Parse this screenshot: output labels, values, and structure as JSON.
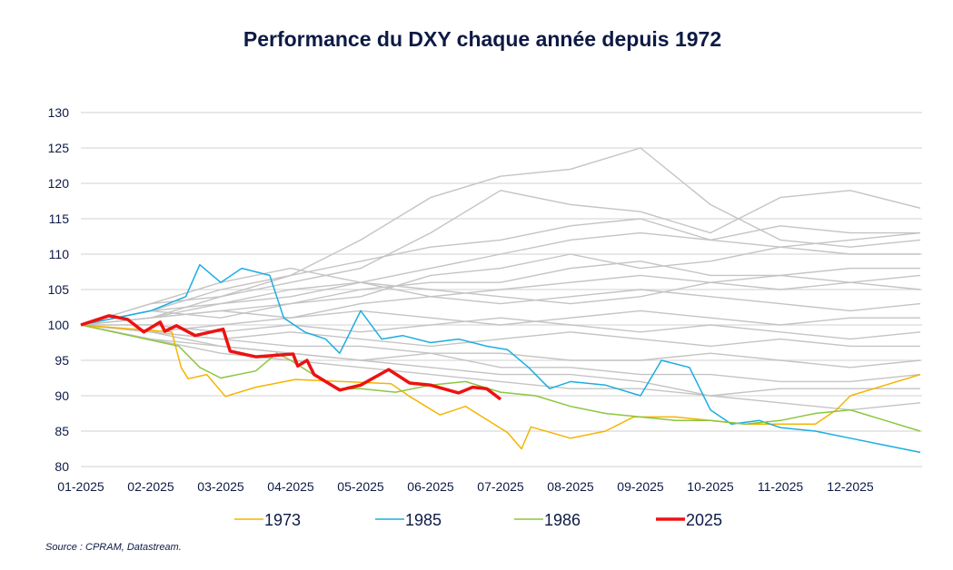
{
  "chart_data": {
    "type": "line",
    "title": "Performance du DXY chaque année depuis 1972",
    "xlabel": "",
    "ylabel": "",
    "ylim": [
      80,
      130
    ],
    "yticks": [
      80,
      85,
      90,
      95,
      100,
      105,
      110,
      115,
      120,
      125,
      130
    ],
    "xlim": [
      "2025-01-01",
      "2025-12-31"
    ],
    "xtick_labels": [
      "01-2025",
      "02-2025",
      "03-2025",
      "04-2025",
      "05-2025",
      "06-2025",
      "07-2025",
      "08-2025",
      "09-2025",
      "10-2025",
      "11-2025",
      "12-2025"
    ],
    "grid": "horizontal",
    "legend_position": "bottom",
    "source": "Source : CPRAM, Datastream.",
    "series": [
      {
        "name": "1973",
        "color": "#f5b400",
        "width": 1.5,
        "points": [
          [
            "2025-01-01",
            100
          ],
          [
            "2025-01-20",
            99.5
          ],
          [
            "2025-02-10",
            99
          ],
          [
            "2025-02-14",
            94
          ],
          [
            "2025-02-17",
            92.4
          ],
          [
            "2025-02-25",
            93
          ],
          [
            "2025-03-03",
            89.9
          ],
          [
            "2025-03-16",
            91.2
          ],
          [
            "2025-04-03",
            92.3
          ],
          [
            "2025-05-14",
            91.7
          ],
          [
            "2025-05-22",
            89.9
          ],
          [
            "2025-06-05",
            87.3
          ],
          [
            "2025-06-16",
            88.5
          ],
          [
            "2025-07-04",
            84.8
          ],
          [
            "2025-07-10",
            82.5
          ],
          [
            "2025-07-14",
            85.6
          ],
          [
            "2025-08-01",
            84
          ],
          [
            "2025-08-16",
            85
          ],
          [
            "2025-08-28",
            87
          ],
          [
            "2025-09-16",
            87
          ],
          [
            "2025-10-01",
            86.5
          ],
          [
            "2025-10-16",
            86
          ],
          [
            "2025-11-01",
            86
          ],
          [
            "2025-11-16",
            86
          ],
          [
            "2025-11-25",
            88
          ],
          [
            "2025-12-01",
            90
          ],
          [
            "2025-12-16",
            91.5
          ],
          [
            "2025-12-31",
            93
          ]
        ]
      },
      {
        "name": "1985",
        "color": "#1aaee0",
        "width": 1.5,
        "points": [
          [
            "2025-01-01",
            100
          ],
          [
            "2025-02-01",
            102
          ],
          [
            "2025-02-16",
            104
          ],
          [
            "2025-02-22",
            108.5
          ],
          [
            "2025-03-01",
            106
          ],
          [
            "2025-03-10",
            108
          ],
          [
            "2025-03-22",
            107
          ],
          [
            "2025-03-28",
            101
          ],
          [
            "2025-04-07",
            99
          ],
          [
            "2025-04-16",
            98
          ],
          [
            "2025-04-22",
            96
          ],
          [
            "2025-05-01",
            102
          ],
          [
            "2025-05-10",
            98
          ],
          [
            "2025-05-19",
            98.5
          ],
          [
            "2025-06-01",
            97.5
          ],
          [
            "2025-06-13",
            98
          ],
          [
            "2025-06-25",
            97
          ],
          [
            "2025-07-04",
            96.5
          ],
          [
            "2025-07-13",
            94
          ],
          [
            "2025-07-22",
            91
          ],
          [
            "2025-08-01",
            92
          ],
          [
            "2025-08-16",
            91.5
          ],
          [
            "2025-09-01",
            90
          ],
          [
            "2025-09-10",
            95
          ],
          [
            "2025-09-22",
            94
          ],
          [
            "2025-10-01",
            88
          ],
          [
            "2025-10-10",
            86
          ],
          [
            "2025-10-22",
            86.5
          ],
          [
            "2025-11-01",
            85.5
          ],
          [
            "2025-11-16",
            85
          ],
          [
            "2025-12-01",
            84
          ],
          [
            "2025-12-16",
            83
          ],
          [
            "2025-12-31",
            82
          ]
        ]
      },
      {
        "name": "1986",
        "color": "#8cc63f",
        "width": 1.5,
        "points": [
          [
            "2025-01-01",
            100
          ],
          [
            "2025-02-13",
            97
          ],
          [
            "2025-02-22",
            94
          ],
          [
            "2025-03-01",
            92.5
          ],
          [
            "2025-03-16",
            93.5
          ],
          [
            "2025-03-25",
            96
          ],
          [
            "2025-04-01",
            95
          ],
          [
            "2025-04-13",
            92.5
          ],
          [
            "2025-04-22",
            91
          ],
          [
            "2025-05-01",
            91
          ],
          [
            "2025-05-16",
            90.5
          ],
          [
            "2025-06-01",
            91.5
          ],
          [
            "2025-06-16",
            92
          ],
          [
            "2025-07-01",
            90.5
          ],
          [
            "2025-07-16",
            90
          ],
          [
            "2025-08-01",
            88.5
          ],
          [
            "2025-08-16",
            87.5
          ],
          [
            "2025-09-01",
            87
          ],
          [
            "2025-09-16",
            86.5
          ],
          [
            "2025-10-01",
            86.5
          ],
          [
            "2025-10-16",
            86
          ],
          [
            "2025-11-01",
            86.5
          ],
          [
            "2025-11-16",
            87.5
          ],
          [
            "2025-12-01",
            88
          ],
          [
            "2025-12-16",
            86.5
          ],
          [
            "2025-12-31",
            85
          ]
        ]
      },
      {
        "name": "2025",
        "color": "#ee1111",
        "width": 3.5,
        "points": [
          [
            "2025-01-01",
            100
          ],
          [
            "2025-01-13",
            101.3
          ],
          [
            "2025-01-21",
            100.8
          ],
          [
            "2025-01-28",
            99
          ],
          [
            "2025-02-05",
            100.4
          ],
          [
            "2025-02-07",
            99.1
          ],
          [
            "2025-02-12",
            99.9
          ],
          [
            "2025-02-20",
            98.5
          ],
          [
            "2025-03-02",
            99.4
          ],
          [
            "2025-03-05",
            96.3
          ],
          [
            "2025-03-16",
            95.5
          ],
          [
            "2025-04-02",
            95.9
          ],
          [
            "2025-04-04",
            94.2
          ],
          [
            "2025-04-08",
            95
          ],
          [
            "2025-04-11",
            93
          ],
          [
            "2025-04-22",
            90.8
          ],
          [
            "2025-05-01",
            91.5
          ],
          [
            "2025-05-13",
            93.7
          ],
          [
            "2025-05-22",
            91.8
          ],
          [
            "2025-06-01",
            91.5
          ],
          [
            "2025-06-13",
            90.4
          ],
          [
            "2025-06-19",
            91.2
          ],
          [
            "2025-06-25",
            91
          ],
          [
            "2025-07-01",
            89.5
          ]
        ]
      }
    ],
    "background_series_color": "#c4c4c4",
    "background_series_x": [
      "2025-01-01",
      "2025-02-01",
      "2025-03-01",
      "2025-04-01",
      "2025-05-01",
      "2025-06-01",
      "2025-07-01",
      "2025-08-01",
      "2025-09-01",
      "2025-10-01",
      "2025-11-01",
      "2025-12-01",
      "2025-12-31"
    ],
    "background_series": [
      [
        100,
        103,
        104,
        107,
        112,
        118,
        121,
        122,
        125,
        117,
        112,
        111,
        112
      ],
      [
        100,
        101,
        104,
        106,
        108,
        113,
        119,
        117,
        116,
        113,
        118,
        119,
        116.5
      ],
      [
        100,
        102,
        105,
        107,
        109,
        111,
        112,
        114,
        115,
        112,
        114,
        113,
        113
      ],
      [
        100,
        102,
        103,
        105,
        106,
        108,
        110,
        112,
        113,
        112,
        111,
        110,
        110
      ],
      [
        100,
        101,
        102,
        103,
        105,
        106,
        106,
        108,
        109,
        107,
        107,
        108,
        108
      ],
      [
        100,
        103,
        106,
        108,
        106,
        104,
        105,
        106,
        107,
        106,
        105,
        106,
        105
      ],
      [
        100,
        101,
        102,
        101,
        103,
        104,
        103,
        104,
        105,
        104,
        103,
        102,
        103
      ],
      [
        100,
        99,
        100,
        101,
        102,
        101,
        100,
        101,
        102,
        101,
        100,
        101,
        101
      ],
      [
        100,
        100,
        99,
        100,
        99,
        100,
        101,
        100,
        99,
        100,
        99,
        98,
        99
      ],
      [
        100,
        99,
        98,
        99,
        98,
        97,
        98,
        99,
        98,
        97,
        98,
        97,
        97
      ],
      [
        100,
        99,
        98,
        97,
        97,
        96,
        96,
        95,
        95,
        96,
        95,
        94,
        95
      ],
      [
        100,
        98,
        97,
        96,
        95,
        96,
        94,
        94,
        93,
        93,
        92,
        92,
        93
      ],
      [
        100,
        99,
        97,
        96,
        95,
        94,
        93,
        93,
        92,
        90,
        91,
        91,
        91
      ],
      [
        100,
        98,
        96,
        95,
        94,
        93,
        92,
        91,
        91,
        90,
        89,
        88,
        89
      ],
      [
        100,
        101,
        103,
        104,
        106,
        105,
        104,
        103,
        104,
        106,
        107,
        106,
        107
      ],
      [
        100,
        102,
        101,
        103,
        104,
        107,
        108,
        110,
        108,
        109,
        111,
        112,
        113
      ]
    ]
  }
}
